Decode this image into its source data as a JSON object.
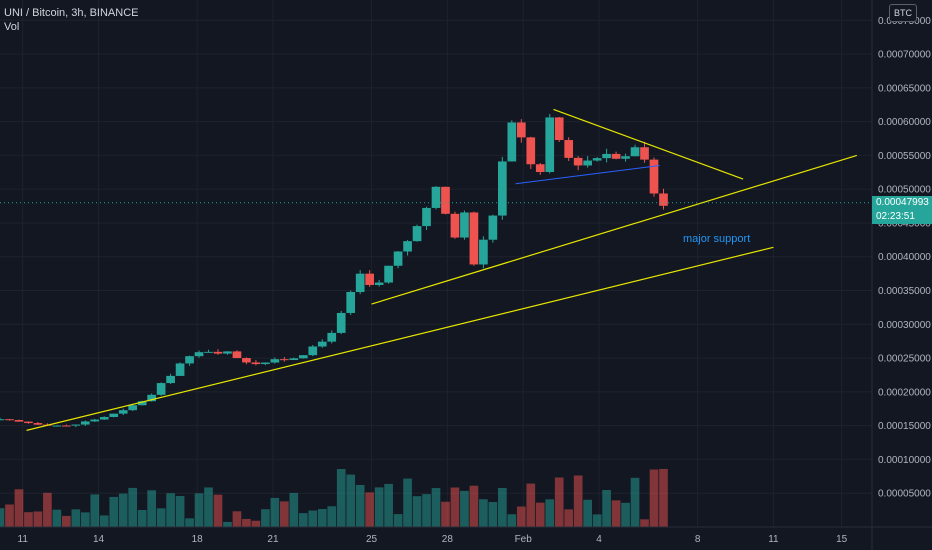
{
  "header": {
    "symbol_line": "UNI / Bitcoin, 3h, BINANCE",
    "volume_label": "Vol",
    "currency_button": "BTC"
  },
  "last_price": {
    "value": "0.00047993",
    "countdown": "02:23:51",
    "color": "#26a69a"
  },
  "annotations": {
    "support_label": "major support"
  },
  "colors": {
    "up": "#26a69a",
    "down": "#ef5350",
    "trendline": "#e6e600",
    "neckline": "#2962ff",
    "annotation_text": "#2196f3",
    "background": "#131722",
    "grid": "#1e222d"
  },
  "chart_data": {
    "type": "candlestick",
    "title": "UNI / Bitcoin, 3h, BINANCE",
    "y_axis": {
      "min": 0.0,
      "max": 0.00078,
      "ticks": [
        "0.00075000",
        "0.00070000",
        "0.00065000",
        "0.00060000",
        "0.00055000",
        "0.00050000",
        "0.00045000",
        "0.00040000",
        "0.00035000",
        "0.00030000",
        "0.00025000",
        "0.00020000",
        "0.00015000",
        "0.00010000",
        "0.00005000"
      ]
    },
    "x_axis": {
      "range_days": [
        10.0,
        21.5
      ],
      "ticks": [
        {
          "label": "11",
          "day": 10.3
        },
        {
          "label": "14",
          "day": 11.3
        },
        {
          "label": "18",
          "day": 12.6
        },
        {
          "label": "21",
          "day": 13.6
        },
        {
          "label": "25",
          "day": 14.9
        },
        {
          "label": "28",
          "day": 15.9
        },
        {
          "label": "Feb",
          "day": 16.9
        },
        {
          "label": "4",
          "day": 17.9
        },
        {
          "label": "8",
          "day": 19.2
        },
        {
          "label": "11",
          "day": 20.2
        },
        {
          "label": "15",
          "day": 21.1
        }
      ]
    },
    "close_anchors": [
      [
        10.0,
        0.000158
      ],
      [
        10.9,
        0.000149
      ],
      [
        11.6,
        0.00017
      ],
      [
        12.0,
        0.000195
      ],
      [
        12.4,
        0.000245
      ],
      [
        12.7,
        0.000262
      ],
      [
        13.0,
        0.000258
      ],
      [
        13.3,
        0.000243
      ],
      [
        13.6,
        0.000245
      ],
      [
        13.9,
        0.000252
      ],
      [
        14.2,
        0.000268
      ],
      [
        14.45,
        0.0003
      ],
      [
        14.7,
        0.00037
      ],
      [
        14.85,
        0.000385
      ],
      [
        14.9,
        0.00034
      ],
      [
        15.0,
        0.00036
      ],
      [
        15.2,
        0.0004
      ],
      [
        15.5,
        0.00044
      ],
      [
        15.75,
        0.0005
      ],
      [
        15.85,
        0.00047
      ],
      [
        16.0,
        0.00043
      ],
      [
        16.15,
        0.00047
      ],
      [
        16.25,
        0.00039
      ],
      [
        16.4,
        0.00043
      ],
      [
        16.55,
        0.00048
      ],
      [
        16.65,
        0.00056
      ],
      [
        16.75,
        0.000595
      ],
      [
        16.9,
        0.00057
      ],
      [
        17.0,
        0.00054
      ],
      [
        17.15,
        0.00052
      ],
      [
        17.25,
        0.0006
      ],
      [
        17.35,
        0.00058
      ],
      [
        17.45,
        0.00055
      ],
      [
        17.6,
        0.00054
      ],
      [
        17.8,
        0.000545
      ],
      [
        18.0,
        0.000555
      ],
      [
        18.2,
        0.00055
      ],
      [
        18.4,
        0.000562
      ],
      [
        18.5,
        0.000545
      ],
      [
        18.6,
        0.0005
      ],
      [
        18.75,
        0.00048
      ],
      [
        18.85,
        0.00048
      ]
    ],
    "volume_axis_max": 7.8e-05,
    "trendlines": [
      {
        "name": "lower-support",
        "from": [
          10.35,
          0.000143
        ],
        "to": [
          20.2,
          0.000414
        ]
      },
      {
        "name": "upper-support",
        "from": [
          14.9,
          0.00033
        ],
        "to": [
          21.3,
          0.00055
        ]
      },
      {
        "name": "descending-resistance",
        "from": [
          17.3,
          0.000618
        ],
        "to": [
          19.8,
          0.000515
        ]
      }
    ],
    "neckline": {
      "from": [
        16.8,
        0.000508
      ],
      "to": [
        18.7,
        0.000535
      ]
    }
  }
}
